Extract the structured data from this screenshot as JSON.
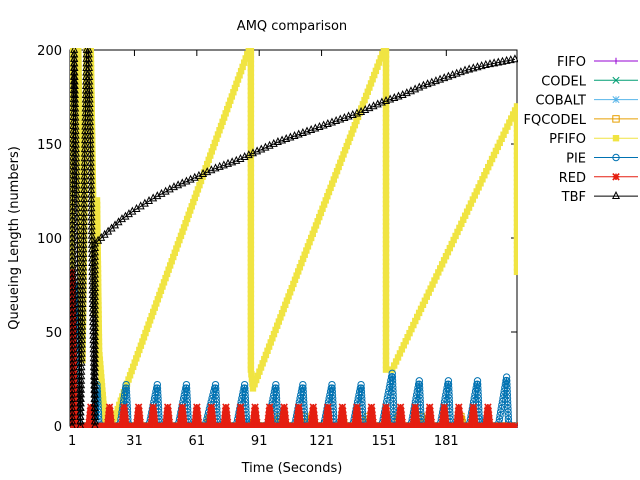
{
  "chart_data": {
    "type": "line",
    "title": "AMQ comparison",
    "xlabel": "Time (Seconds)",
    "ylabel": "Queueing Length (numbers)",
    "xlim": [
      0,
      215
    ],
    "ylim": [
      0,
      200
    ],
    "xticks": [
      1,
      31,
      61,
      91,
      121,
      151,
      181
    ],
    "yticks": [
      0,
      50,
      100,
      150,
      200
    ],
    "grid": false,
    "legend_position": "right, outside plot",
    "series": [
      {
        "name": "FIFO",
        "color": "#9400d3",
        "marker": "plus",
        "points": [
          [
            0,
            0
          ],
          [
            214,
            0
          ]
        ]
      },
      {
        "name": "CODEL",
        "color": "#009e73",
        "marker": "x",
        "points": [
          [
            0,
            0
          ],
          [
            214,
            0
          ]
        ]
      },
      {
        "name": "COBALT",
        "color": "#56b4e9",
        "marker": "asterisk",
        "points": [
          [
            1,
            0
          ],
          [
            2,
            8
          ],
          [
            3,
            0
          ],
          [
            66,
            0
          ],
          [
            67,
            5
          ],
          [
            68,
            0
          ],
          [
            84,
            0
          ],
          [
            85,
            3
          ],
          [
            86,
            0
          ],
          [
            100,
            0
          ],
          [
            101,
            4
          ],
          [
            102,
            0
          ],
          [
            152,
            0
          ],
          [
            153,
            5
          ],
          [
            154,
            0
          ],
          [
            198,
            0
          ],
          [
            199,
            4
          ],
          [
            200,
            0
          ],
          [
            214,
            0
          ]
        ]
      },
      {
        "name": "FQCODEL",
        "color": "#e69f00",
        "marker": "square-open",
        "points": [
          [
            0,
            0
          ],
          [
            66,
            0
          ],
          [
            67,
            4
          ],
          [
            68,
            0
          ],
          [
            88,
            0
          ],
          [
            89,
            5
          ],
          [
            90,
            0
          ],
          [
            100,
            0
          ],
          [
            101,
            5
          ],
          [
            102,
            0
          ],
          [
            112,
            0
          ],
          [
            113,
            5
          ],
          [
            114,
            0
          ],
          [
            130,
            0
          ],
          [
            131,
            5
          ],
          [
            132,
            0
          ],
          [
            142,
            0
          ],
          [
            143,
            5
          ],
          [
            144,
            0
          ],
          [
            157,
            0
          ],
          [
            158,
            5
          ],
          [
            159,
            0
          ],
          [
            168,
            0
          ],
          [
            169,
            5
          ],
          [
            170,
            0
          ],
          [
            187,
            0
          ],
          [
            188,
            5
          ],
          [
            189,
            0
          ],
          [
            214,
            0
          ]
        ]
      },
      {
        "name": "PFIFO",
        "color": "#f0e442",
        "marker": "square-filled",
        "points": [
          [
            1,
            0
          ],
          [
            1,
            200
          ],
          [
            4,
            200
          ],
          [
            6,
            35
          ],
          [
            8,
            200
          ],
          [
            10,
            200
          ],
          [
            12,
            60
          ],
          [
            13,
            120
          ],
          [
            14,
            40
          ],
          [
            17,
            0
          ],
          [
            20,
            0
          ],
          [
            86,
            200
          ],
          [
            87,
            200
          ],
          [
            87,
            113
          ],
          [
            87,
            30
          ],
          [
            88,
            20
          ],
          [
            151,
            200
          ],
          [
            152,
            200
          ],
          [
            152,
            130
          ],
          [
            152,
            47
          ],
          [
            152,
            30
          ],
          [
            155,
            30
          ],
          [
            215,
            170
          ],
          [
            215,
            82
          ]
        ]
      },
      {
        "name": "PIE",
        "color": "#0072b2",
        "marker": "circle-open",
        "points": [
          [
            0,
            0
          ],
          [
            1,
            0
          ],
          [
            2,
            75
          ],
          [
            3,
            10
          ],
          [
            4,
            0
          ],
          [
            10,
            0
          ],
          [
            12,
            5
          ],
          [
            13,
            22
          ],
          [
            14,
            0
          ],
          [
            24,
            0
          ],
          [
            27,
            22
          ],
          [
            28,
            0
          ],
          [
            38,
            0
          ],
          [
            42,
            22
          ],
          [
            43,
            0
          ],
          [
            52,
            0
          ],
          [
            56,
            22
          ],
          [
            57,
            0
          ],
          [
            65,
            0
          ],
          [
            70,
            22
          ],
          [
            71,
            0
          ],
          [
            80,
            0
          ],
          [
            84,
            22
          ],
          [
            85,
            0
          ],
          [
            95,
            0
          ],
          [
            99,
            22
          ],
          [
            100,
            0
          ],
          [
            108,
            0
          ],
          [
            112,
            22
          ],
          [
            113,
            0
          ],
          [
            122,
            0
          ],
          [
            126,
            22
          ],
          [
            127,
            0
          ],
          [
            136,
            0
          ],
          [
            140,
            22
          ],
          [
            141,
            0
          ],
          [
            150,
            0
          ],
          [
            155,
            28
          ],
          [
            156,
            0
          ],
          [
            164,
            0
          ],
          [
            168,
            24
          ],
          [
            169,
            0
          ],
          [
            178,
            0
          ],
          [
            182,
            24
          ],
          [
            183,
            0
          ],
          [
            192,
            0
          ],
          [
            196,
            24
          ],
          [
            197,
            0
          ],
          [
            206,
            0
          ],
          [
            210,
            26
          ],
          [
            211,
            0
          ],
          [
            214,
            0
          ]
        ]
      },
      {
        "name": "RED",
        "color": "#e51e10",
        "marker": "star",
        "points": [
          [
            0,
            0
          ],
          [
            1,
            0
          ],
          [
            1,
            82
          ],
          [
            2,
            12
          ],
          [
            3,
            0
          ],
          [
            9,
            0
          ],
          [
            10,
            10
          ],
          [
            11,
            0
          ],
          [
            18,
            0
          ],
          [
            19,
            10
          ],
          [
            20,
            0
          ],
          [
            25,
            0
          ],
          [
            26,
            10
          ],
          [
            27,
            0
          ],
          [
            32,
            0
          ],
          [
            33,
            10
          ],
          [
            34,
            0
          ],
          [
            39,
            0
          ],
          [
            40,
            10
          ],
          [
            41,
            0
          ],
          [
            46,
            0
          ],
          [
            47,
            10
          ],
          [
            48,
            0
          ],
          [
            53,
            0
          ],
          [
            54,
            10
          ],
          [
            55,
            0
          ],
          [
            60,
            0
          ],
          [
            61,
            10
          ],
          [
            62,
            0
          ],
          [
            67,
            0
          ],
          [
            68,
            10
          ],
          [
            69,
            0
          ],
          [
            74,
            0
          ],
          [
            75,
            10
          ],
          [
            76,
            0
          ],
          [
            81,
            0
          ],
          [
            82,
            10
          ],
          [
            83,
            0
          ],
          [
            88,
            0
          ],
          [
            89,
            10
          ],
          [
            90,
            0
          ],
          [
            95,
            0
          ],
          [
            96,
            10
          ],
          [
            97,
            0
          ],
          [
            102,
            0
          ],
          [
            103,
            10
          ],
          [
            104,
            0
          ],
          [
            109,
            0
          ],
          [
            110,
            10
          ],
          [
            111,
            0
          ],
          [
            116,
            0
          ],
          [
            117,
            10
          ],
          [
            118,
            0
          ],
          [
            123,
            0
          ],
          [
            124,
            10
          ],
          [
            125,
            0
          ],
          [
            130,
            0
          ],
          [
            131,
            10
          ],
          [
            132,
            0
          ],
          [
            137,
            0
          ],
          [
            138,
            10
          ],
          [
            139,
            0
          ],
          [
            144,
            0
          ],
          [
            145,
            10
          ],
          [
            146,
            0
          ],
          [
            151,
            0
          ],
          [
            152,
            10
          ],
          [
            153,
            0
          ],
          [
            158,
            0
          ],
          [
            159,
            10
          ],
          [
            160,
            0
          ],
          [
            165,
            0
          ],
          [
            166,
            10
          ],
          [
            167,
            0
          ],
          [
            172,
            0
          ],
          [
            173,
            10
          ],
          [
            174,
            0
          ],
          [
            179,
            0
          ],
          [
            180,
            10
          ],
          [
            181,
            0
          ],
          [
            186,
            0
          ],
          [
            187,
            10
          ],
          [
            188,
            0
          ],
          [
            193,
            0
          ],
          [
            194,
            10
          ],
          [
            195,
            0
          ],
          [
            200,
            0
          ],
          [
            201,
            10
          ],
          [
            202,
            0
          ],
          [
            214,
            0
          ]
        ]
      },
      {
        "name": "TBF",
        "color": "#000000",
        "marker": "triangle-open",
        "points": [
          [
            1,
            0
          ],
          [
            1,
            100
          ],
          [
            2,
            200
          ],
          [
            3,
            140
          ],
          [
            4,
            60
          ],
          [
            5,
            0
          ],
          [
            6,
            60
          ],
          [
            7,
            140
          ],
          [
            8,
            200
          ],
          [
            9,
            200
          ],
          [
            10,
            140
          ],
          [
            11,
            60
          ],
          [
            12,
            0
          ],
          [
            12,
            97
          ],
          [
            15,
            100
          ],
          [
            20,
            105
          ],
          [
            25,
            110
          ],
          [
            30,
            114
          ],
          [
            40,
            121
          ],
          [
            50,
            127
          ],
          [
            60,
            132
          ],
          [
            70,
            137
          ],
          [
            80,
            141
          ],
          [
            90,
            146
          ],
          [
            100,
            151
          ],
          [
            110,
            155
          ],
          [
            120,
            159
          ],
          [
            130,
            163
          ],
          [
            140,
            167
          ],
          [
            150,
            172
          ],
          [
            160,
            176
          ],
          [
            170,
            181
          ],
          [
            180,
            185
          ],
          [
            190,
            189
          ],
          [
            200,
            192
          ],
          [
            214,
            195
          ]
        ]
      }
    ]
  }
}
